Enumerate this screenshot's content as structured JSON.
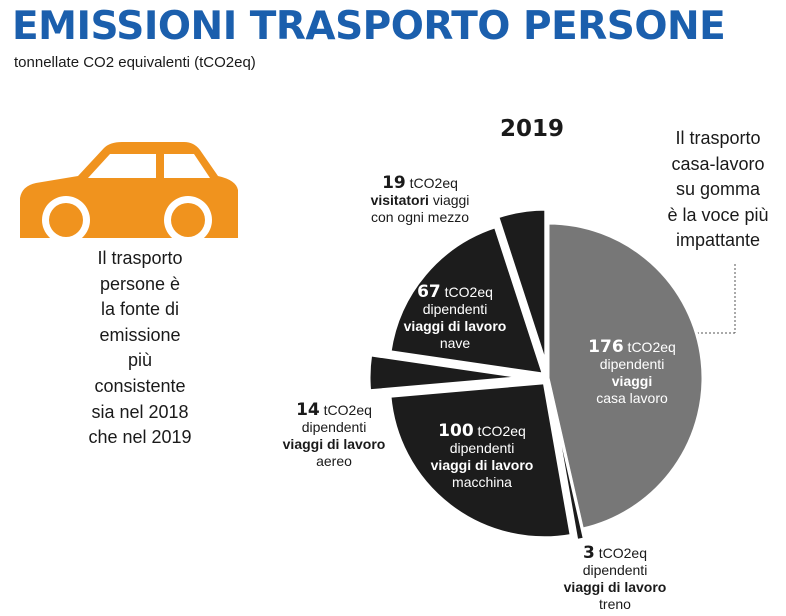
{
  "header": {
    "title": "EMISSIONI TRASPORTO PERSONE",
    "subtitle": "tonnellate CO2 equivalenti (tCO2eq)"
  },
  "year_label": "2019",
  "left_note": [
    "Il trasporto",
    "persone è",
    "la fonte di",
    "emissione",
    "più",
    "consistente",
    "sia nel 2018",
    "che nel 2019"
  ],
  "right_note": [
    "Il trasporto",
    "casa-lavoro",
    "su gomma",
    "è la voce più",
    "impattante"
  ],
  "colors": {
    "title": "#1b5fad",
    "car": "#f0931e",
    "dark_slice": "#1c1c1c",
    "highlight_slice": "#777777"
  },
  "icons": {
    "car": "car-icon"
  },
  "chart_data": {
    "type": "pie",
    "title": "2019",
    "unit": "tCO2eq",
    "slices": [
      {
        "value": 176,
        "unit": "tCO2eq",
        "group": "dipendenti",
        "category": "viaggi",
        "detail": "casa lavoro",
        "color": "#777777"
      },
      {
        "value": 3,
        "unit": "tCO2eq",
        "group": "dipendenti",
        "category": "viaggi di lavoro",
        "detail": "treno",
        "color": "#1c1c1c"
      },
      {
        "value": 100,
        "unit": "tCO2eq",
        "group": "dipendenti",
        "category": "viaggi di lavoro",
        "detail": "macchina",
        "color": "#1c1c1c"
      },
      {
        "value": 14,
        "unit": "tCO2eq",
        "group": "dipendenti",
        "category": "viaggi di lavoro",
        "detail": "aereo",
        "color": "#1c1c1c"
      },
      {
        "value": 67,
        "unit": "tCO2eq",
        "group": "dipendenti",
        "category": "viaggi di lavoro",
        "detail": "nave",
        "color": "#1c1c1c"
      },
      {
        "value": 19,
        "unit": "tCO2eq",
        "group": "visitatori",
        "category": "viaggi",
        "detail": "con ogni mezzo",
        "color": "#1c1c1c"
      }
    ]
  }
}
